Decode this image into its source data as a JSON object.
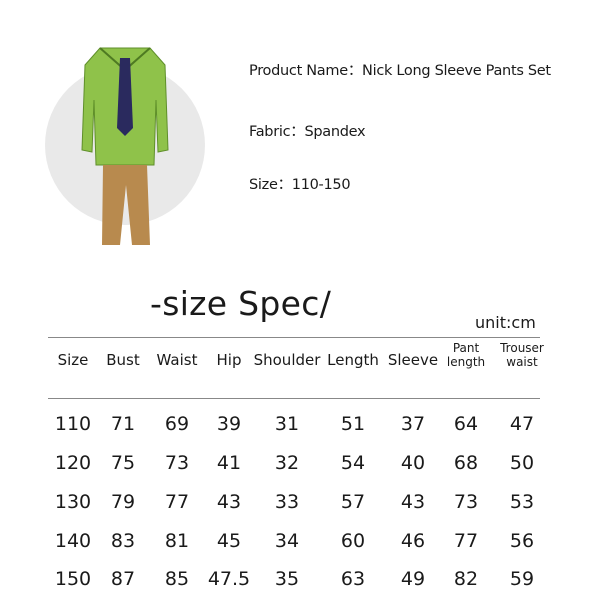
{
  "product": {
    "name_label": "Product Name：Nick Long Sleeve Pants Set",
    "fabric_label": "Fabric：Spandex",
    "size_label": "Size：110-150",
    "colors": {
      "shirt": "#8fc24a",
      "tie": "#2a2a5e",
      "pants": "#b88a4e",
      "circle": "#e9e9e9"
    }
  },
  "size_spec": {
    "title": "-size Spec/",
    "unit": "unit:cm",
    "headers": [
      "Size",
      "Bust",
      "Waist",
      "Hip",
      "Shoulder",
      "Length",
      "Sleeve",
      "Pant length",
      "Trouser waist"
    ],
    "rows": [
      [
        "110",
        "71",
        "69",
        "39",
        "31",
        "51",
        "37",
        "64",
        "47"
      ],
      [
        "120",
        "75",
        "73",
        "41",
        "32",
        "54",
        "40",
        "68",
        "50"
      ],
      [
        "130",
        "79",
        "77",
        "43",
        "33",
        "57",
        "43",
        "73",
        "53"
      ],
      [
        "140",
        "83",
        "81",
        "45",
        "34",
        "60",
        "46",
        "77",
        "56"
      ],
      [
        "150",
        "87",
        "85",
        "47.5",
        "35",
        "63",
        "49",
        "82",
        "59"
      ]
    ]
  }
}
